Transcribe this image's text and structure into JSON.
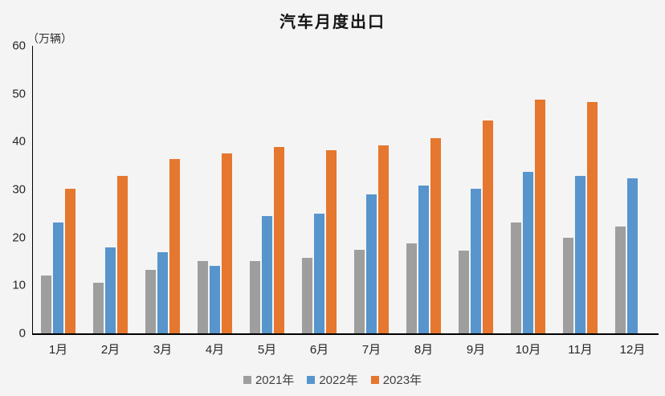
{
  "chart_data": {
    "type": "bar",
    "title": "汽车月度出口",
    "ylabel": "（万辆）",
    "xlabel": "",
    "categories": [
      "1月",
      "2月",
      "3月",
      "4月",
      "5月",
      "6月",
      "7月",
      "8月",
      "9月",
      "10月",
      "11月",
      "12月"
    ],
    "series": [
      {
        "name": "2021年",
        "color": "#9e9e9e",
        "values": [
          12.0,
          10.5,
          13.2,
          15.1,
          15.1,
          15.8,
          17.4,
          18.7,
          17.2,
          23.1,
          19.9,
          22.3
        ]
      },
      {
        "name": "2022年",
        "color": "#5795cc",
        "values": [
          23.1,
          18.0,
          17.0,
          14.1,
          24.5,
          24.9,
          29.0,
          30.8,
          30.1,
          33.7,
          32.9,
          32.4
        ]
      },
      {
        "name": "2023年",
        "color": "#e6772e",
        "values": [
          30.1,
          32.9,
          36.4,
          37.6,
          38.9,
          38.2,
          39.2,
          40.8,
          44.4,
          48.8,
          48.2,
          null
        ]
      }
    ],
    "ylim": [
      0,
      60
    ],
    "ytick_step": 10,
    "yticks": [
      "0",
      "10",
      "20",
      "30",
      "40",
      "50",
      "60"
    ],
    "grid": false,
    "legend_position": "bottom",
    "axis_color": "#000000",
    "background_color": "#f4f4f4"
  }
}
